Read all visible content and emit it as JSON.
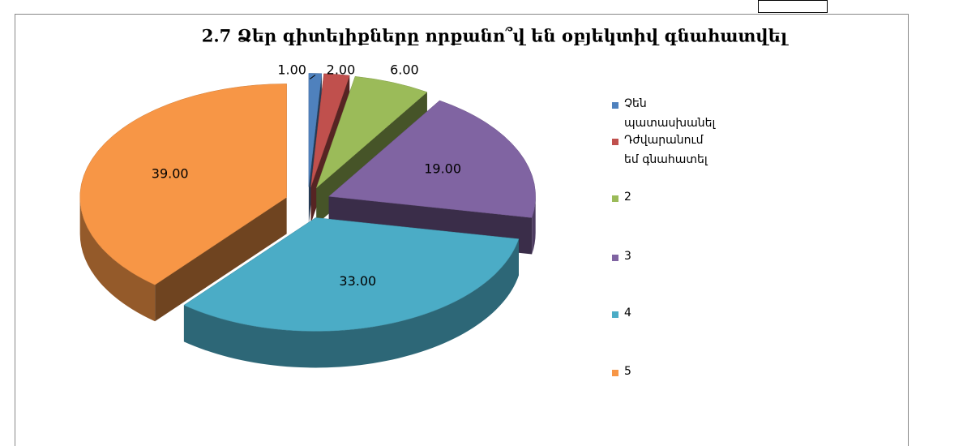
{
  "chart_data": {
    "type": "pie3d",
    "title": "2.7 Ձեր գիտելիքները որքանո՞վ են օբյեկտիվ գնահատվել",
    "categories": [
      "Չեն պատասխանել",
      "Դժվարանում եմ գնահատել",
      "2",
      "3",
      "4",
      "5"
    ],
    "values": [
      1,
      2,
      6,
      19,
      33,
      39
    ],
    "value_labels": [
      "1.00",
      "2.00",
      "6.00",
      "19.00",
      "33.00",
      "39.00"
    ],
    "colors": [
      "#4f81bd",
      "#c0504d",
      "#9bbb59",
      "#8064a2",
      "#4bacc6",
      "#f79646"
    ],
    "legend": "right"
  }
}
